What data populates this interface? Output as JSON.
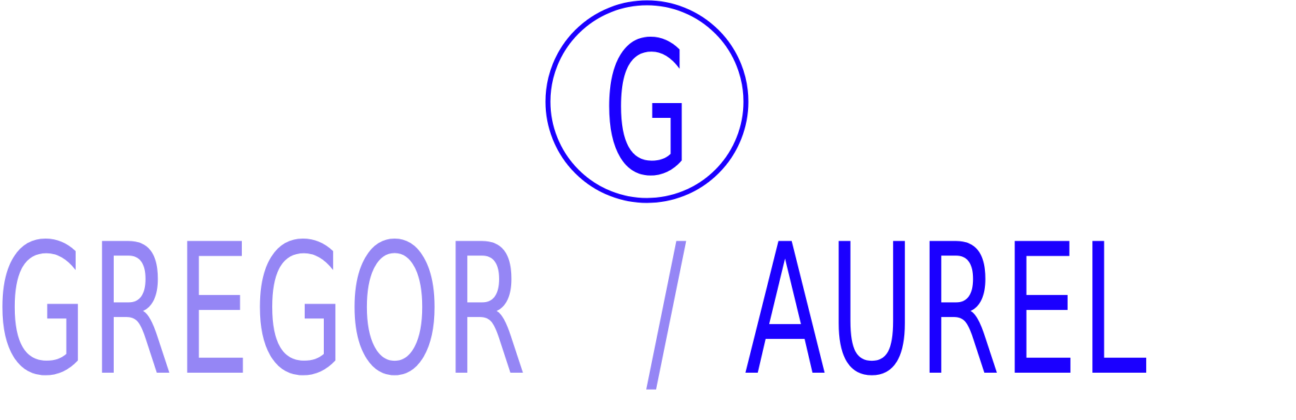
{
  "logo": {
    "monogram": "G",
    "wordmark_part1": "GREGOR",
    "separator": "/",
    "wordmark_part2": "AUREL"
  },
  "colors": {
    "primary": "#1b00ff",
    "secondary": "#9586f5",
    "background": "#ffffff"
  }
}
